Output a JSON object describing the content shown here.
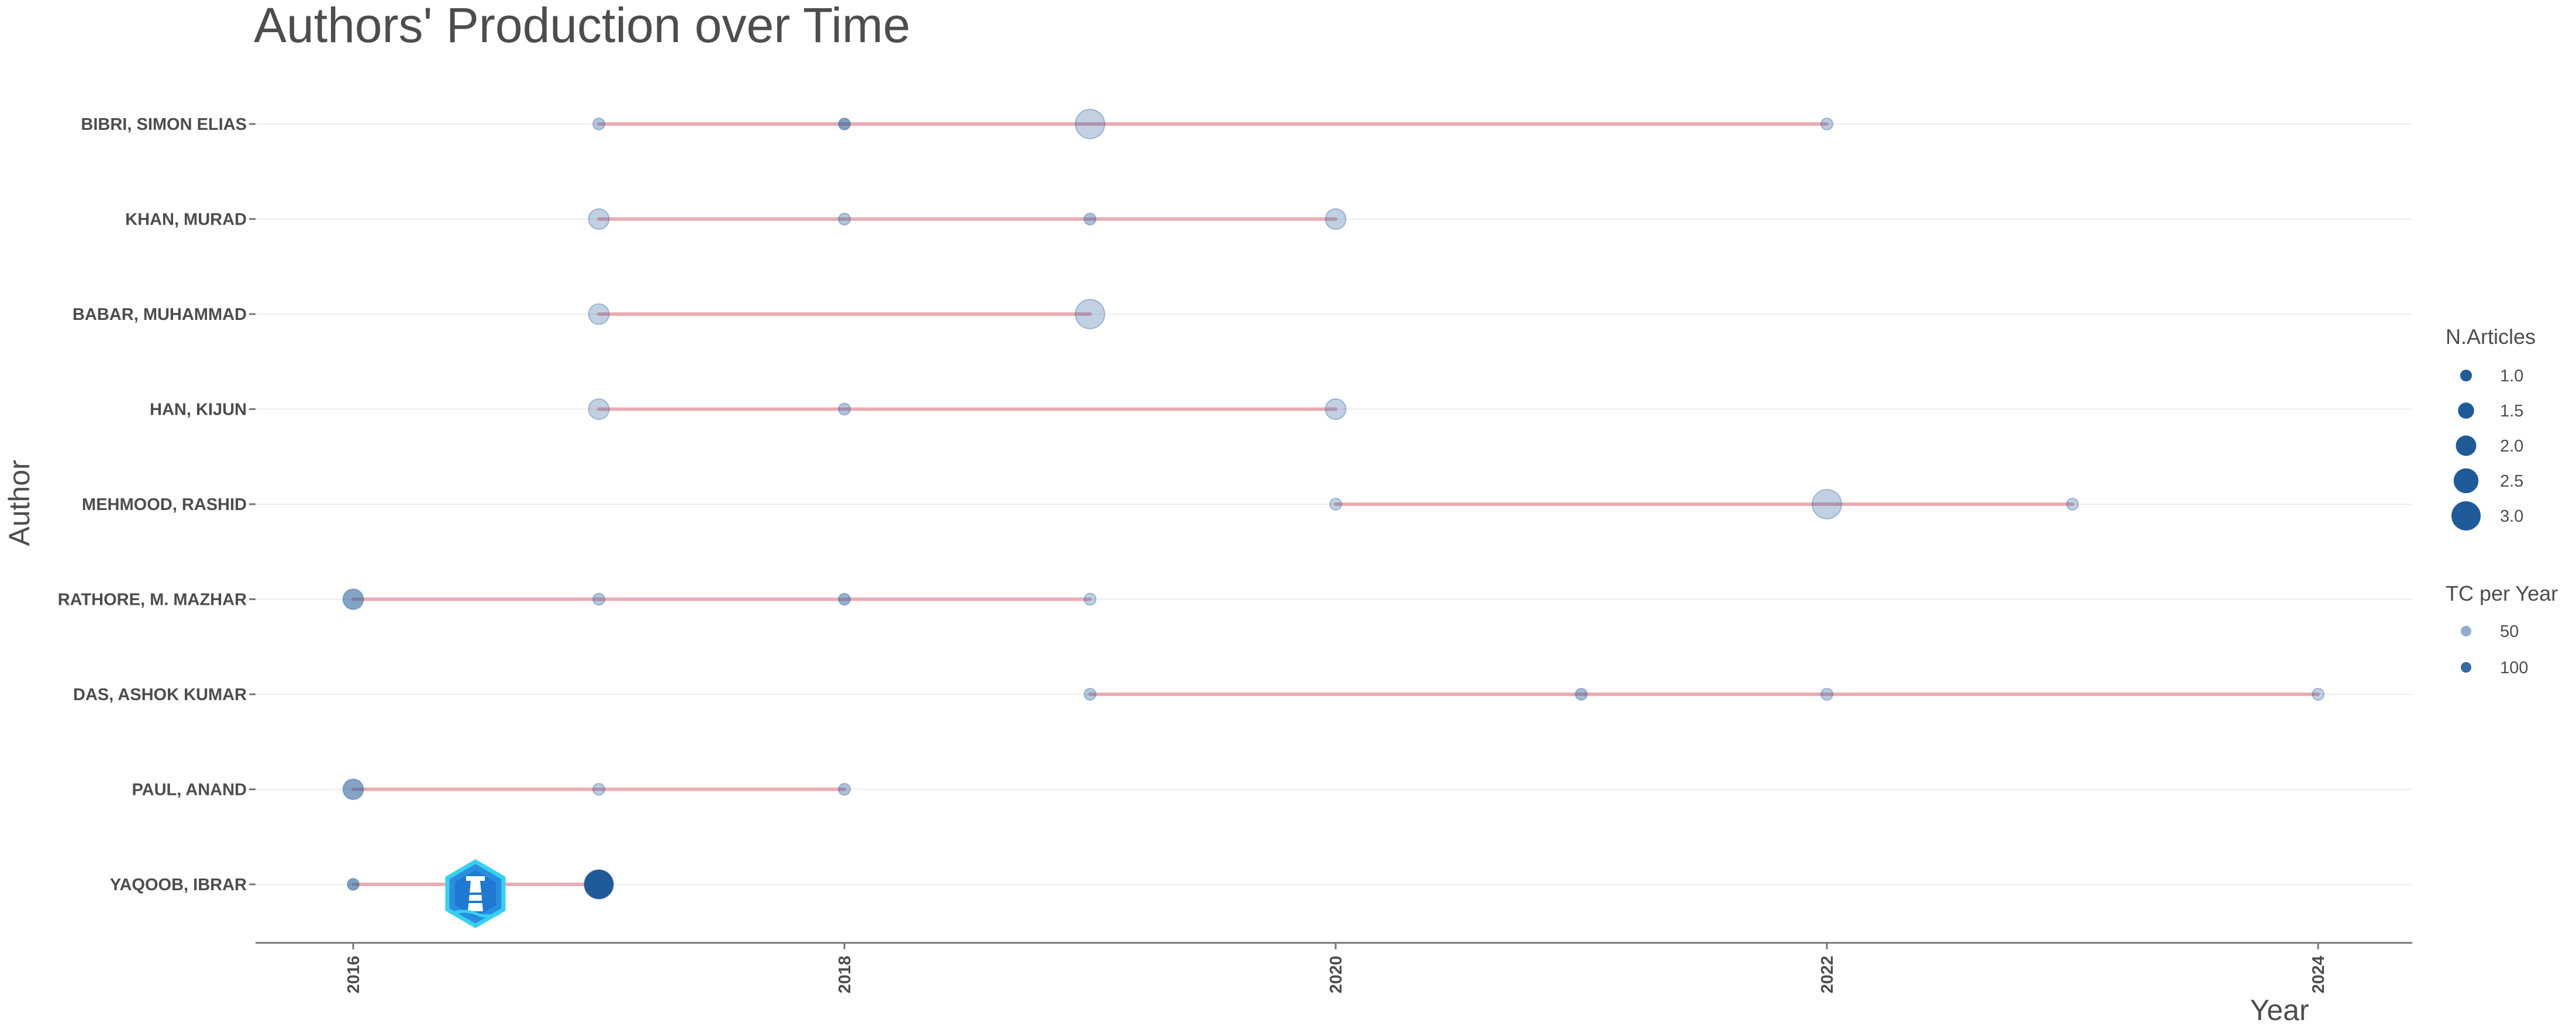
{
  "chart_data": {
    "type": "scatter",
    "title": "Authors' Production over Time",
    "xlabel": "Year",
    "ylabel": "Author",
    "xlim": [
      2015.8,
      2024.2
    ],
    "x_ticks": [
      "2016",
      "2018",
      "2020",
      "2022",
      "2024"
    ],
    "grid": true,
    "legend_position": "right",
    "colors": {
      "line": "#e8a0a8",
      "point": "#1f5a99",
      "grid": "#ececec",
      "axis": "#777777"
    },
    "authors": [
      {
        "name": "BIBRI, SIMON ELIAS",
        "start": 2017,
        "end": 2022,
        "points": [
          {
            "year": 2017,
            "articles": 1,
            "tc": 40
          },
          {
            "year": 2018,
            "articles": 1,
            "tc": 80
          },
          {
            "year": 2019,
            "articles": 3,
            "tc": 30
          },
          {
            "year": 2022,
            "articles": 1,
            "tc": 35
          }
        ]
      },
      {
        "name": "KHAN, MURAD",
        "start": 2017,
        "end": 2020,
        "points": [
          {
            "year": 2017,
            "articles": 2,
            "tc": 30
          },
          {
            "year": 2018,
            "articles": 1,
            "tc": 40
          },
          {
            "year": 2019,
            "articles": 1,
            "tc": 45
          },
          {
            "year": 2020,
            "articles": 2,
            "tc": 30
          }
        ]
      },
      {
        "name": "BABAR, MUHAMMAD",
        "start": 2017,
        "end": 2019,
        "points": [
          {
            "year": 2017,
            "articles": 2,
            "tc": 30
          },
          {
            "year": 2019,
            "articles": 3,
            "tc": 30
          }
        ]
      },
      {
        "name": "HAN, KIJUN",
        "start": 2017,
        "end": 2020,
        "points": [
          {
            "year": 2017,
            "articles": 2,
            "tc": 30
          },
          {
            "year": 2018,
            "articles": 1,
            "tc": 40
          },
          {
            "year": 2020,
            "articles": 2,
            "tc": 30
          }
        ]
      },
      {
        "name": "MEHMOOD, RASHID",
        "start": 2020,
        "end": 2023,
        "points": [
          {
            "year": 2020,
            "articles": 1,
            "tc": 30
          },
          {
            "year": 2022,
            "articles": 3,
            "tc": 30
          },
          {
            "year": 2023,
            "articles": 1,
            "tc": 30
          }
        ]
      },
      {
        "name": "RATHORE, M. MAZHAR",
        "start": 2016,
        "end": 2019,
        "points": [
          {
            "year": 2016,
            "articles": 2,
            "tc": 75
          },
          {
            "year": 2017,
            "articles": 1,
            "tc": 40
          },
          {
            "year": 2018,
            "articles": 1,
            "tc": 60
          },
          {
            "year": 2019,
            "articles": 1,
            "tc": 30
          }
        ]
      },
      {
        "name": "DAS, ASHOK KUMAR",
        "start": 2019,
        "end": 2024,
        "points": [
          {
            "year": 2019,
            "articles": 1,
            "tc": 40
          },
          {
            "year": 2021,
            "articles": 1,
            "tc": 50
          },
          {
            "year": 2022,
            "articles": 1,
            "tc": 35
          },
          {
            "year": 2024,
            "articles": 1,
            "tc": 30
          }
        ]
      },
      {
        "name": "PAUL, ANAND",
        "start": 2016,
        "end": 2018,
        "points": [
          {
            "year": 2016,
            "articles": 2,
            "tc": 75
          },
          {
            "year": 2017,
            "articles": 1,
            "tc": 35
          },
          {
            "year": 2018,
            "articles": 1,
            "tc": 45
          }
        ]
      },
      {
        "name": "YAQOOB, IBRAR",
        "start": 2016,
        "end": 2017,
        "points": [
          {
            "year": 2016,
            "articles": 1,
            "tc": 80
          },
          {
            "year": 2017,
            "articles": 3,
            "tc": 120
          }
        ]
      }
    ],
    "legend_articles": {
      "title": "N.Articles",
      "values": [
        1.0,
        1.5,
        2.0,
        2.5,
        3.0
      ],
      "labels": [
        "1.0",
        "1.5",
        "2.0",
        "2.5",
        "3.0"
      ]
    },
    "legend_tc": {
      "title": "TC per Year",
      "values": [
        50,
        100
      ],
      "labels": [
        "50",
        "100"
      ]
    }
  },
  "watermark": {
    "icon": "lighthouse-logo-icon",
    "colors": {
      "primary": "#1a7fd6",
      "secondary": "#2ed3f2"
    }
  }
}
